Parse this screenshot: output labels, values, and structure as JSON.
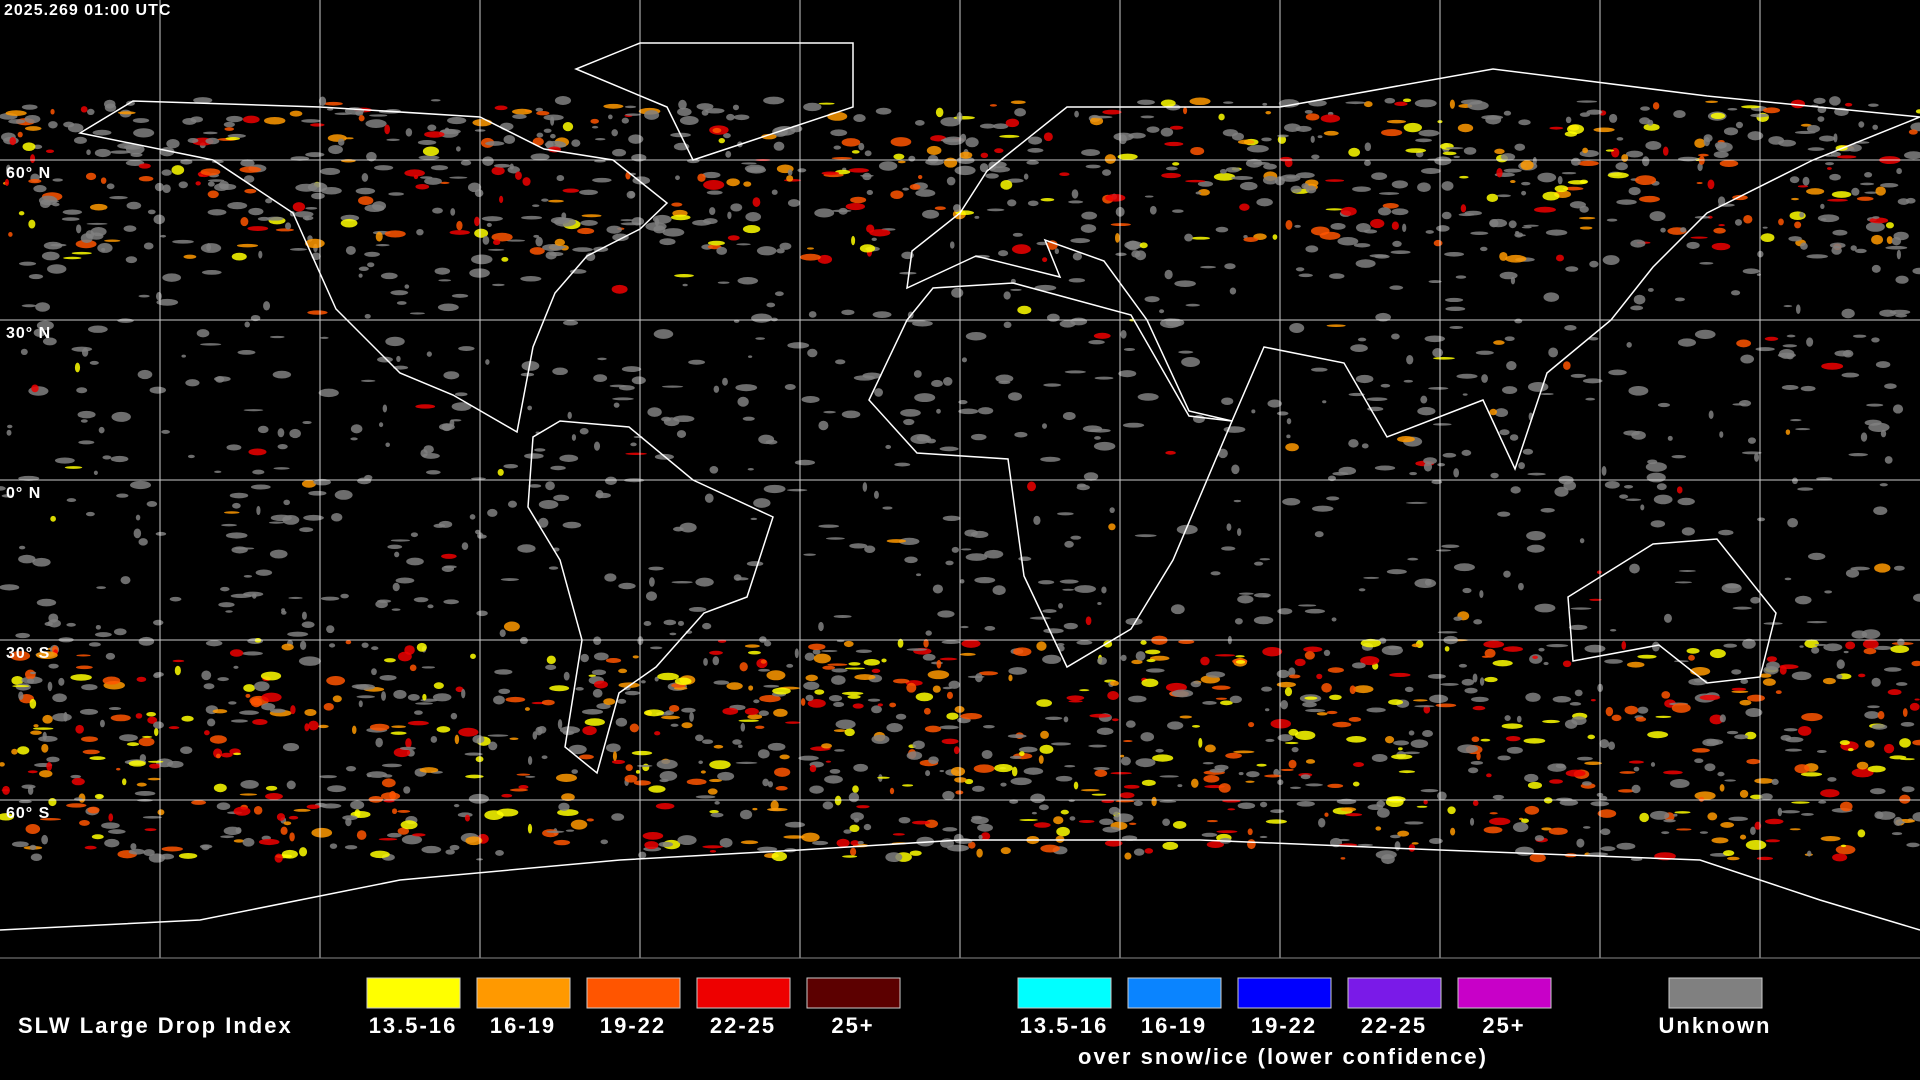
{
  "header": {
    "timestamp": "2025.269 01:00 UTC"
  },
  "map": {
    "latitude_labels": [
      "60° N",
      "30° N",
      "0° N",
      "30° S",
      "60° S"
    ]
  },
  "legend": {
    "title": "SLW Large Drop Index",
    "items": [
      {
        "label": "13.5-16",
        "color": "#ffff00"
      },
      {
        "label": "16-19",
        "color": "#ff9900"
      },
      {
        "label": "19-22",
        "color": "#ff5500"
      },
      {
        "label": "22-25",
        "color": "#ee0000"
      },
      {
        "label": "25+",
        "color": "#5c0000"
      }
    ],
    "snow_ice_items": [
      {
        "label": "13.5-16",
        "color": "#00ffff"
      },
      {
        "label": "16-19",
        "color": "#0a84ff"
      },
      {
        "label": "19-22",
        "color": "#0000ff"
      },
      {
        "label": "22-25",
        "color": "#7a1ae8"
      },
      {
        "label": "25+",
        "color": "#c800c8"
      }
    ],
    "snow_ice_caption": "over snow/ice (lower confidence)",
    "unknown": {
      "label": "Unknown",
      "color": "#808080"
    }
  }
}
